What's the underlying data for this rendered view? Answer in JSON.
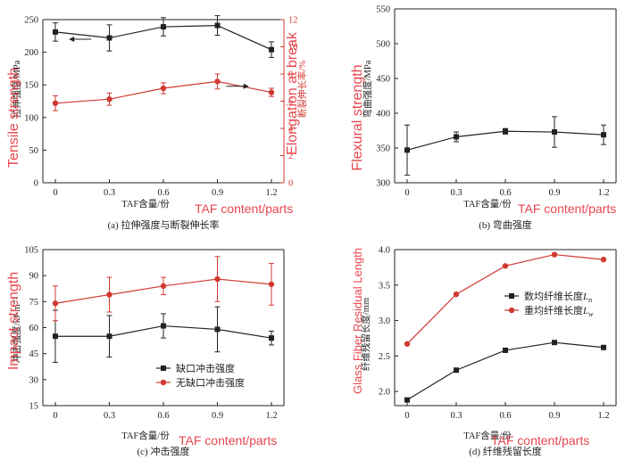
{
  "chart_data": [
    {
      "id": "a",
      "type": "line",
      "caption": "(a) 拉伸强度与断裂伸长率",
      "x": [
        0,
        0.3,
        0.6,
        0.9,
        1.2
      ],
      "xticks": [
        "0",
        "0.3",
        "0.6",
        "0.9",
        "1.2"
      ],
      "xlabel": "TAF含量/份",
      "xlabel_en": "TAF content/parts",
      "ylabel": "拉伸强度/MPa",
      "ylabel_en": "Tensile strength",
      "ylim": [
        0,
        250
      ],
      "yticks": [
        0,
        50,
        100,
        150,
        200,
        250
      ],
      "y2label": "断裂伸长率/%",
      "y2label_en": "Elongation at break",
      "y2lim": [
        0,
        12
      ],
      "y2ticks": [
        0,
        2,
        4,
        6,
        8,
        10,
        12
      ],
      "y2_color": "#d03a32",
      "series": [
        {
          "axis": "left",
          "color": "#222222",
          "marker": "square",
          "values": [
            231,
            222,
            239,
            241,
            204
          ],
          "errors": [
            14,
            20,
            14,
            15,
            12
          ]
        },
        {
          "axis": "right",
          "color": "#d03a32",
          "marker": "circle",
          "values": [
            5.85,
            6.15,
            6.95,
            7.45,
            6.65
          ],
          "errors": [
            0.55,
            0.45,
            0.4,
            0.55,
            0.3
          ]
        }
      ]
    },
    {
      "id": "b",
      "type": "line",
      "caption": "(b) 弯曲强度",
      "x": [
        0,
        0.3,
        0.6,
        0.9,
        1.2
      ],
      "xticks": [
        "0",
        "0.3",
        "0.6",
        "0.9",
        "1.2"
      ],
      "xlabel": "TAF含量/份",
      "xlabel_en": "TAF content/parts",
      "ylabel": "弯曲强度/MPa",
      "ylabel_en": "Flexural strength",
      "ylim": [
        300,
        550
      ],
      "yticks": [
        300,
        350,
        400,
        450,
        500,
        550
      ],
      "series": [
        {
          "axis": "left",
          "color": "#222222",
          "marker": "square",
          "values": [
            347,
            366,
            374,
            373,
            369
          ],
          "errors": [
            36,
            7,
            4,
            22,
            14
          ]
        }
      ]
    },
    {
      "id": "c",
      "type": "line",
      "caption": "(c) 冲击强度",
      "x": [
        0,
        0.3,
        0.6,
        0.9,
        1.2
      ],
      "xticks": [
        "0",
        "0.3",
        "0.6",
        "0.9",
        "1.2"
      ],
      "xlabel": "TAF含量/份",
      "xlabel_en": "TAF content/parts",
      "ylabel": "冲击强度/kJ·m⁻²",
      "ylabel_en": "Impact strength",
      "ylim": [
        15,
        105
      ],
      "yticks": [
        15,
        30,
        45,
        60,
        75,
        90,
        105
      ],
      "legend": "bottom-right",
      "series": [
        {
          "name": "缺口冲击强度",
          "axis": "left",
          "color": "#222222",
          "marker": "square",
          "values": [
            55,
            55,
            61,
            59,
            54
          ],
          "errors": [
            15,
            12,
            7,
            13,
            4
          ]
        },
        {
          "name": "无缺口冲击强度",
          "axis": "left",
          "color": "#d03a32",
          "marker": "circle",
          "values": [
            74,
            79,
            84,
            88,
            85
          ],
          "errors": [
            10,
            10,
            5,
            13,
            12
          ]
        }
      ]
    },
    {
      "id": "d",
      "type": "line",
      "caption": "(d) 纤维残留长度",
      "x": [
        0,
        0.3,
        0.6,
        0.9,
        1.2
      ],
      "xticks": [
        "0",
        "0.3",
        "0.6",
        "0.9",
        "1.2"
      ],
      "xlabel": "TAF含量/份",
      "xlabel_en": "TAF content/parts",
      "ylabel": "纤维残留长度/mm",
      "ylabel_en": "Glass Fiber Residual Length",
      "ylim": [
        1.8,
        4.0
      ],
      "yticks": [
        2.0,
        2.5,
        3.0,
        3.5,
        4.0
      ],
      "legend": "top-right",
      "series": [
        {
          "name": "数均纤维长度",
          "sub": "n",
          "axis": "left",
          "color": "#222222",
          "marker": "square",
          "values": [
            1.88,
            2.3,
            2.58,
            2.69,
            2.62
          ]
        },
        {
          "name": "重均纤维长度",
          "sub": "w",
          "axis": "left",
          "color": "#d03a32",
          "marker": "circle",
          "values": [
            2.67,
            3.37,
            3.77,
            3.93,
            3.86
          ]
        }
      ]
    }
  ]
}
